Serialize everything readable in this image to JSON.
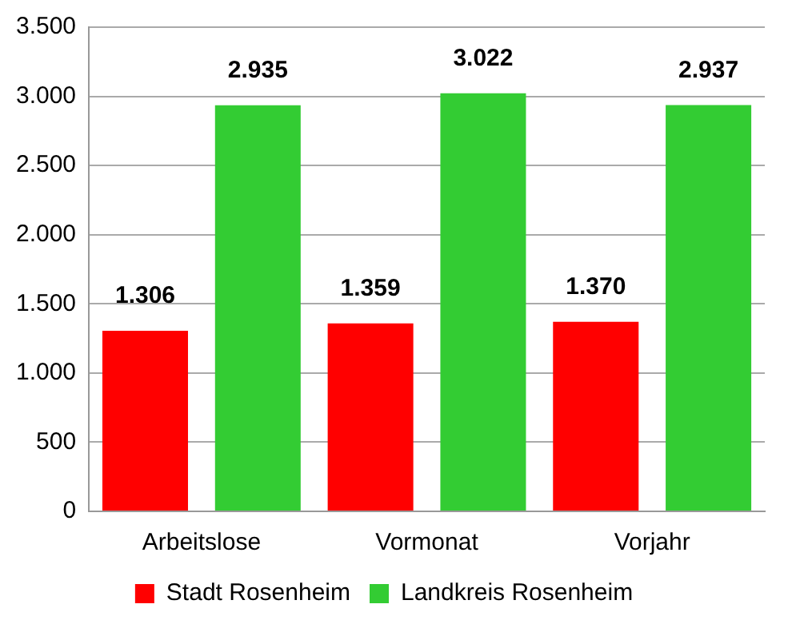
{
  "chart_data": {
    "type": "bar",
    "categories": [
      "Arbeitslose",
      "Vormonat",
      "Vorjahr"
    ],
    "series": [
      {
        "name": "Stadt Rosenheim",
        "color": "#ff0000",
        "values": [
          1306,
          1359,
          1370
        ],
        "value_labels": [
          "1.306",
          "1.359",
          "1.370"
        ]
      },
      {
        "name": "Landkreis Rosenheim",
        "color": "#33cc33",
        "values": [
          2935,
          3022,
          2937
        ],
        "value_labels": [
          "2.935",
          "3.022",
          "2.937"
        ]
      }
    ],
    "ylim": [
      0,
      3500
    ],
    "yticks": [
      0,
      {
        "value": 500,
        "label": "500"
      },
      {
        "value": 1000,
        "label": "1.000"
      },
      {
        "value": 1500,
        "label": "1.500"
      },
      {
        "value": 2000,
        "label": "2.000"
      },
      {
        "value": 2500,
        "label": "2.500"
      },
      {
        "value": 3000,
        "label": "3.000"
      },
      {
        "value": 3500,
        "label": "3.500"
      }
    ],
    "grid": "y",
    "legend": "bottom"
  }
}
